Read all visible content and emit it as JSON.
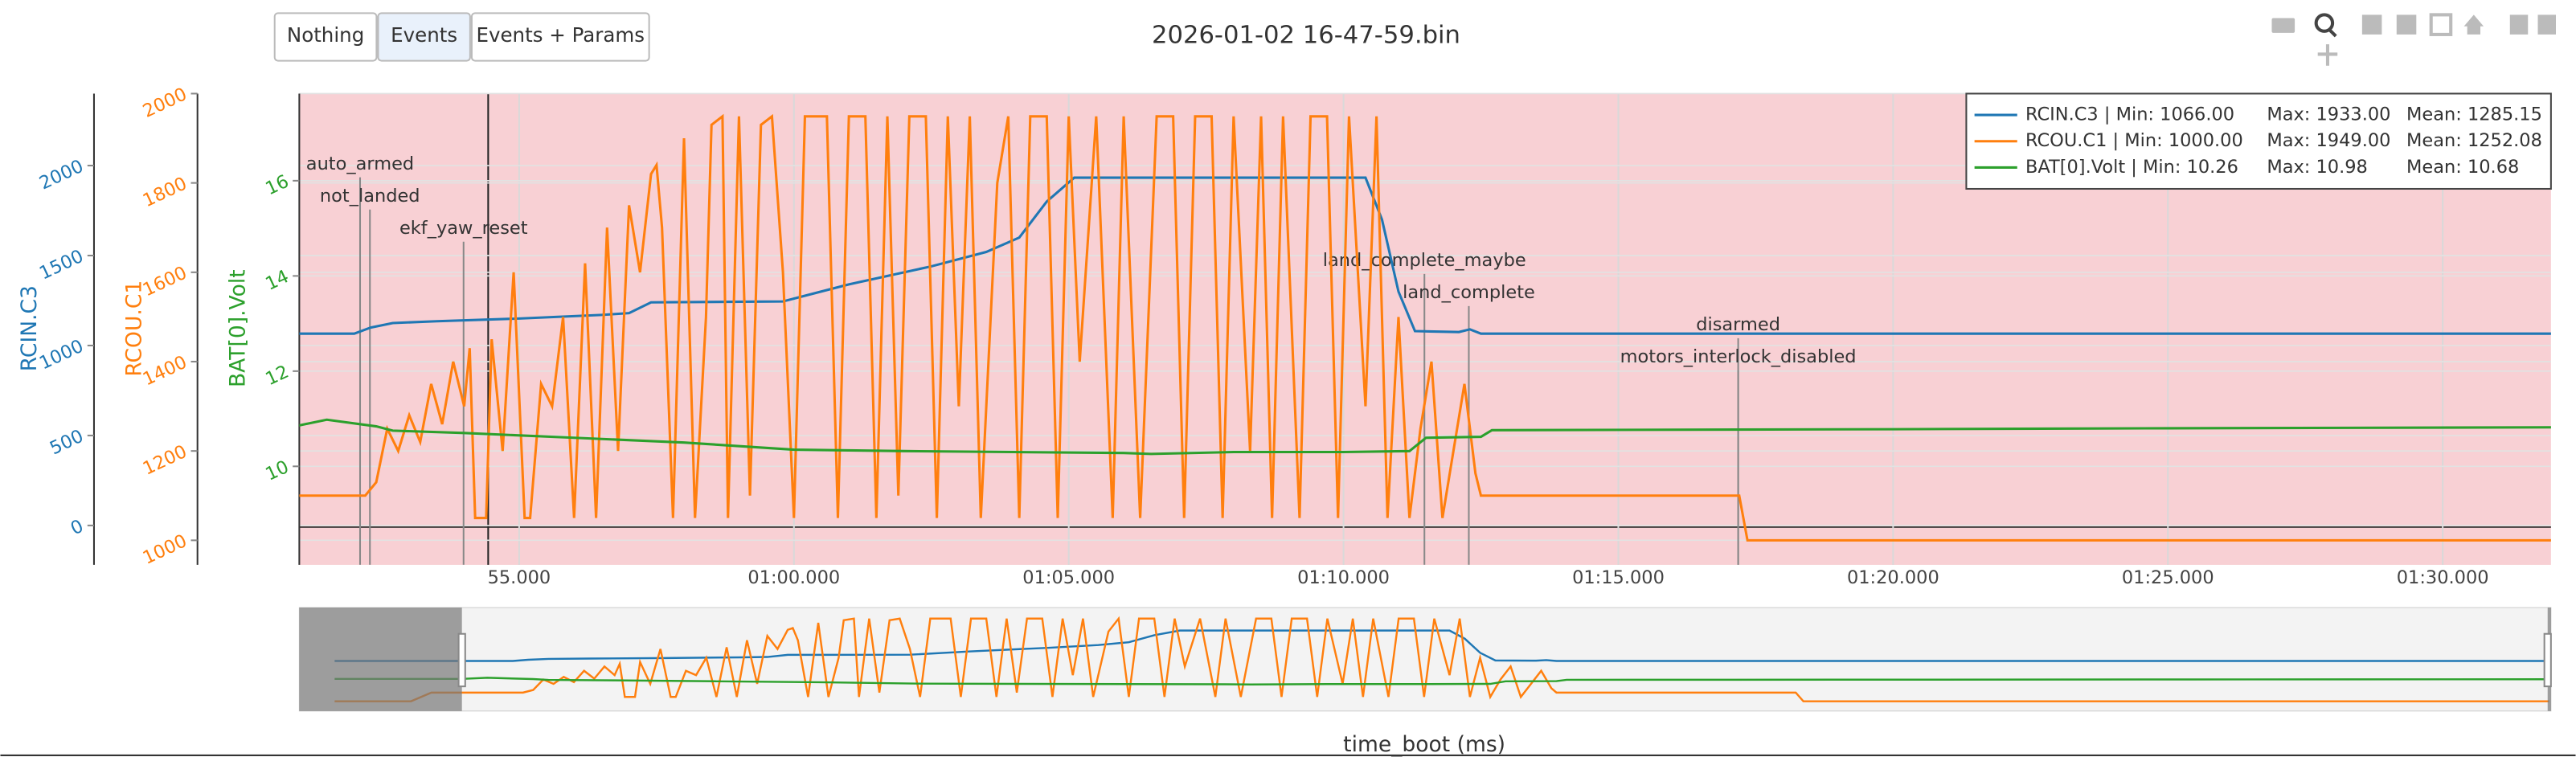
{
  "chart_data": {
    "type": "line",
    "title": "2026-01-02 16-47-59.bin",
    "buttons": [
      "Nothing",
      "Events",
      "Events + Params"
    ],
    "xlabel": "time_boot (ms)",
    "xlim": [
      51000,
      91970
    ],
    "xrange_full": [
      47806,
      92035
    ],
    "xticks": [
      {
        "value": 55000,
        "label": "55.000"
      },
      {
        "value": 60000,
        "label": "01:00.000"
      },
      {
        "value": 65000,
        "label": "01:05.000"
      },
      {
        "value": 70000,
        "label": "01:10.000"
      },
      {
        "value": 75000,
        "label": "01:15.000"
      },
      {
        "value": 80000,
        "label": "01:20.000"
      },
      {
        "value": 85000,
        "label": "01:25.000"
      },
      {
        "value": 90000,
        "label": "01:30.000"
      }
    ],
    "ylabel": "RCIN.C3",
    "ylim": [
      -219,
      2400
    ],
    "yticks": [
      0,
      500,
      1000,
      1500,
      2000
    ],
    "y2label": "RCOU.C1",
    "y2lim": [
      945,
      2000
    ],
    "y2ticks": [
      1000,
      1200,
      1400,
      1600,
      1800,
      2000
    ],
    "y3label": "BAT[0].Volt",
    "y3lim": [
      7.93,
      17.83
    ],
    "y3ticks": [
      10,
      12,
      14,
      16
    ],
    "grid": true,
    "legend": "top-right",
    "series": [
      {
        "name": "RCIN.C3",
        "color": "#1f77b4",
        "axis": "y",
        "legend_label": "RCIN.C3 | Min: 1066.00",
        "legend_max": "Max: 1933.00",
        "legend_mean": "Mean: 1285.15",
        "x": [
          48500,
          52000,
          52300,
          52700,
          53500,
          55000,
          56500,
          57000,
          57400,
          59800,
          61000,
          62500,
          63500,
          64100,
          64600,
          65100,
          70400,
          70700,
          71000,
          71300,
          72100,
          72300,
          72500,
          92000
        ],
        "values": [
          1066,
          1066,
          1100,
          1125,
          1135,
          1150,
          1170,
          1180,
          1240,
          1245,
          1340,
          1440,
          1520,
          1600,
          1800,
          1933,
          1933,
          1700,
          1300,
          1080,
          1075,
          1090,
          1066,
          1066
        ]
      },
      {
        "name": "RCOU.C1",
        "color": "#ff7f0e",
        "axis": "y2",
        "legend_label": "RCOU.C1 | Min: 1000.00",
        "legend_max": "Max: 1949.00",
        "legend_mean": "Mean: 1252.08",
        "x": [
          48500,
          50000,
          50400,
          52200,
          52400,
          52600,
          52800,
          53000,
          53200,
          53400,
          53600,
          53800,
          54000,
          54100,
          54200,
          54400,
          54500,
          54700,
          54900,
          55100,
          55200,
          55400,
          55600,
          55800,
          56000,
          56200,
          56400,
          56600,
          56800,
          57000,
          57200,
          57400,
          57500,
          57600,
          57800,
          58000,
          58200,
          58400,
          58500,
          58700,
          58800,
          59000,
          59200,
          59400,
          59600,
          59800,
          60000,
          60200,
          60600,
          60800,
          61000,
          61300,
          61500,
          61700,
          61900,
          62100,
          62400,
          62600,
          62800,
          63000,
          63200,
          63400,
          63700,
          63900,
          64100,
          64300,
          64600,
          64800,
          65000,
          65200,
          65500,
          65800,
          66000,
          66300,
          66600,
          66900,
          67100,
          67300,
          67600,
          67800,
          68000,
          68300,
          68500,
          68700,
          68900,
          69200,
          69400,
          69700,
          69900,
          70100,
          70400,
          70600,
          70800,
          71000,
          71200,
          71400,
          71600,
          71800,
          72000,
          72200,
          72400,
          72500,
          77200,
          77350,
          92000
        ],
        "values": [
          1000,
          1000,
          1100,
          1100,
          1130,
          1250,
          1200,
          1280,
          1220,
          1350,
          1260,
          1400,
          1300,
          1430,
          1050,
          1050,
          1450,
          1200,
          1600,
          1050,
          1050,
          1350,
          1300,
          1500,
          1050,
          1620,
          1050,
          1700,
          1200,
          1750,
          1600,
          1820,
          1840,
          1700,
          1050,
          1900,
          1050,
          1500,
          1930,
          1949,
          1050,
          1949,
          1100,
          1930,
          1949,
          1600,
          1050,
          1949,
          1949,
          1050,
          1949,
          1949,
          1050,
          1949,
          1100,
          1949,
          1949,
          1050,
          1949,
          1300,
          1949,
          1050,
          1800,
          1949,
          1050,
          1949,
          1949,
          1050,
          1949,
          1400,
          1949,
          1050,
          1949,
          1050,
          1949,
          1949,
          1050,
          1949,
          1949,
          1050,
          1949,
          1200,
          1949,
          1050,
          1949,
          1050,
          1949,
          1949,
          1050,
          1949,
          1300,
          1949,
          1050,
          1500,
          1050,
          1250,
          1400,
          1050,
          1200,
          1350,
          1150,
          1100,
          1100,
          1000,
          1000
        ]
      },
      {
        "name": "BAT[0].Volt",
        "color": "#2ca02c",
        "axis": "y3",
        "legend_label": "BAT[0].Volt | Min: 10.26",
        "legend_max": "Max: 10.98",
        "legend_mean": "Mean: 10.68",
        "x": [
          48500,
          51000,
          51500,
          52400,
          52700,
          54000,
          56000,
          58000,
          60000,
          62000,
          64000,
          66000,
          66500,
          68000,
          70000,
          71200,
          71500,
          72500,
          72700,
          80000,
          85000,
          92000
        ],
        "values": [
          10.86,
          10.86,
          10.98,
          10.84,
          10.75,
          10.7,
          10.6,
          10.5,
          10.35,
          10.32,
          10.3,
          10.28,
          10.26,
          10.3,
          10.3,
          10.32,
          10.6,
          10.62,
          10.76,
          10.78,
          10.8,
          10.82
        ]
      }
    ],
    "events": [
      {
        "label": "auto_armed",
        "x": 52106
      },
      {
        "label": "not_landed",
        "x": 52285
      },
      {
        "label": "ekf_yaw_reset",
        "x": 53989
      },
      {
        "label": "land_complete_maybe",
        "x": 71472
      },
      {
        "label": "land_complete",
        "x": 72280
      },
      {
        "label": "disarmed",
        "x": 77181
      },
      {
        "label": "motors_interlock_disabled",
        "x": 77181
      }
    ]
  }
}
